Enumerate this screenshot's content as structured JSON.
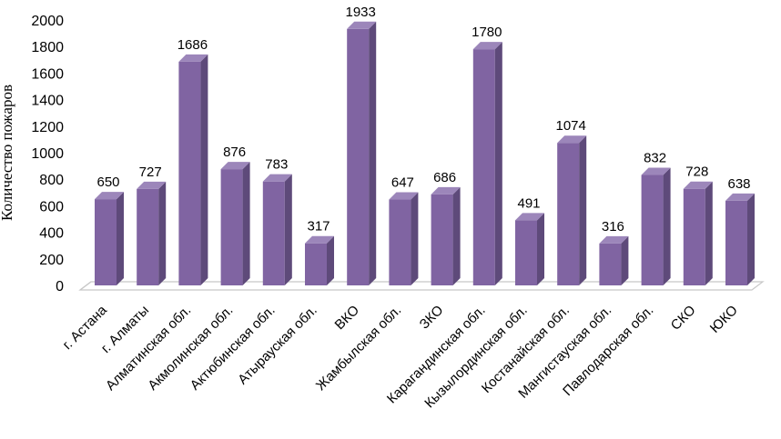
{
  "chart_data": {
    "type": "bar",
    "title": "",
    "xlabel": "",
    "ylabel": "Количество пожаров",
    "ylim": [
      0,
      2000
    ],
    "yticks": [
      0,
      200,
      400,
      600,
      800,
      1000,
      1200,
      1400,
      1600,
      1800,
      2000
    ],
    "categories": [
      "г. Астана",
      "г. Алматы",
      "Алматинская обл.",
      "Акмолинская обл.",
      "Актюбинская обл.",
      "Атырауская обл.",
      "ВКО",
      "Жамбылская обл.",
      "ЗКО",
      "Карагандинская обл.",
      "Кызылординская обл.",
      "Костанайская обл.",
      "Мангистауская обл.",
      "Павлодарская обл.",
      "СКО",
      "ЮКО"
    ],
    "values": [
      650,
      727,
      1686,
      876,
      783,
      317,
      1933,
      647,
      686,
      1780,
      491,
      1074,
      316,
      832,
      728,
      638
    ],
    "data_labels": [
      "650",
      "727",
      "1686",
      "876",
      "783",
      "317",
      "1933",
      "647",
      "686",
      "1780",
      "491",
      "1074",
      "316",
      "832",
      "728",
      "638"
    ],
    "grid": false,
    "style": "3d-column",
    "colors": {
      "front": "#8064a2",
      "side": "#5e4a7a",
      "top": "#9c86ba",
      "floor": "#c8c8c8"
    }
  }
}
